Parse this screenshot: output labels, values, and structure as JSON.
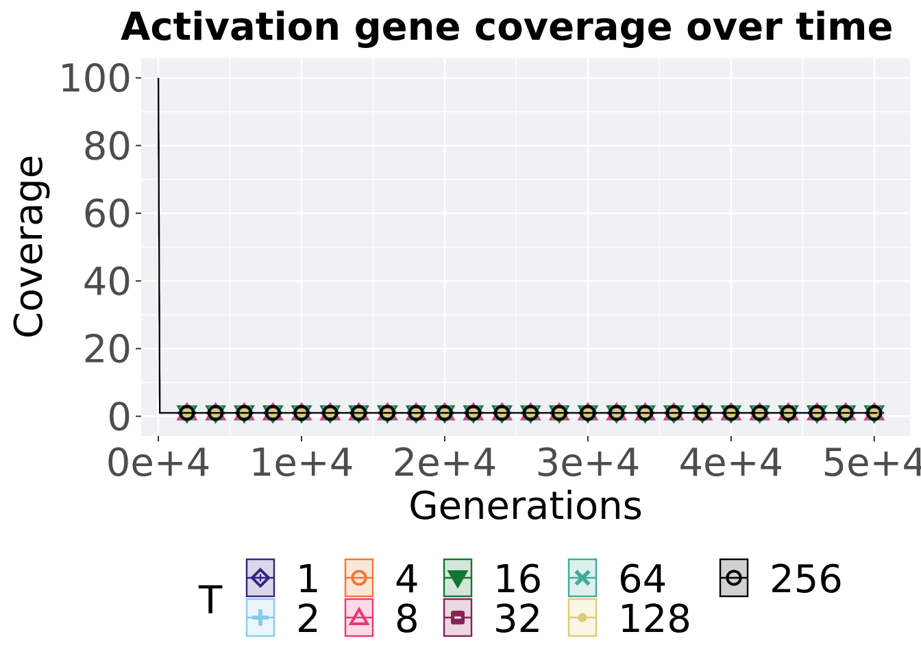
{
  "chart_data": {
    "type": "line",
    "title": "Activation gene coverage over time",
    "xlabel": "Generations",
    "ylabel": "Coverage",
    "xlim": [
      -1200,
      52500
    ],
    "ylim": [
      -5.8,
      105.8
    ],
    "x_ticks": [
      0,
      10000,
      20000,
      30000,
      40000,
      50000
    ],
    "x_tick_labels": [
      "0e+4",
      "1e+4",
      "2e+4",
      "3e+4",
      "4e+4",
      "5e+4"
    ],
    "y_ticks": [
      0,
      20,
      40,
      60,
      80,
      100
    ],
    "y_tick_labels": [
      "0",
      "20",
      "40",
      "60",
      "80",
      "100"
    ],
    "grid": true,
    "legend_title": "T",
    "legend_position": "bottom",
    "x": [
      0,
      100,
      2000,
      4000,
      6000,
      8000,
      10000,
      12000,
      14000,
      16000,
      18000,
      20000,
      22000,
      24000,
      26000,
      28000,
      30000,
      32000,
      34000,
      36000,
      38000,
      40000,
      42000,
      44000,
      46000,
      48000,
      50000
    ],
    "series": [
      {
        "name": "1",
        "color": "#332288",
        "marker": "diamond-plus",
        "values": [
          100,
          1,
          1,
          1,
          1,
          1,
          1,
          1,
          1,
          1,
          1,
          1,
          1,
          1,
          1,
          1,
          1,
          1,
          1,
          1,
          1,
          1,
          1,
          1,
          1,
          1,
          1
        ]
      },
      {
        "name": "2",
        "color": "#88CCEE",
        "marker": "plus",
        "values": [
          100,
          1,
          1,
          1,
          1,
          1,
          1,
          1,
          1,
          1,
          1,
          1,
          1,
          1,
          1,
          1,
          1,
          1,
          1,
          1,
          1,
          1,
          1,
          1,
          1,
          1,
          1
        ]
      },
      {
        "name": "4",
        "color": "#EE7733",
        "marker": "circle-minus",
        "values": [
          100,
          1,
          1,
          1,
          1,
          1,
          1,
          1,
          1,
          1,
          1,
          1,
          1,
          1,
          1,
          1,
          1,
          1,
          1,
          1,
          1,
          1,
          1,
          1,
          1,
          1,
          1
        ]
      },
      {
        "name": "8",
        "color": "#EE3377",
        "marker": "triangle-up",
        "values": [
          100,
          1,
          1,
          1,
          1,
          1,
          1,
          1,
          1,
          1,
          1,
          1,
          1,
          1,
          1,
          1,
          1,
          1,
          1,
          1,
          1,
          1,
          1,
          1,
          1,
          1,
          1
        ]
      },
      {
        "name": "16",
        "color": "#117733",
        "marker": "triangle-down",
        "values": [
          100,
          1,
          1,
          1,
          1,
          1,
          1,
          1,
          1,
          1,
          1,
          1,
          1,
          1,
          1,
          1,
          1,
          1,
          1,
          1,
          1,
          1,
          1,
          1,
          1,
          1,
          1
        ]
      },
      {
        "name": "32",
        "color": "#882255",
        "marker": "square-minus",
        "values": [
          100,
          1,
          1,
          1,
          1,
          1,
          1,
          1,
          1,
          1,
          1,
          1,
          1,
          1,
          1,
          1,
          1,
          1,
          1,
          1,
          1,
          1,
          1,
          1,
          1,
          1,
          1
        ]
      },
      {
        "name": "64",
        "color": "#44AA99",
        "marker": "cross",
        "values": [
          100,
          1,
          1,
          1,
          1,
          1,
          1,
          1,
          1,
          1,
          1,
          1,
          1,
          1,
          1,
          1,
          1,
          1,
          1,
          1,
          1,
          1,
          1,
          1,
          1,
          1,
          1
        ]
      },
      {
        "name": "128",
        "color": "#DDCC77",
        "marker": "dot",
        "values": [
          100,
          1,
          1,
          1,
          1,
          1,
          1,
          1,
          1,
          1,
          1,
          1,
          1,
          1,
          1,
          1,
          1,
          1,
          1,
          1,
          1,
          1,
          1,
          1,
          1,
          1,
          1
        ]
      },
      {
        "name": "256",
        "color": "#000000",
        "marker": "circle-minus",
        "values": [
          100,
          1,
          1,
          1,
          1,
          1,
          1,
          1,
          1,
          1,
          1,
          1,
          1,
          1,
          1,
          1,
          1,
          1,
          1,
          1,
          1,
          1,
          1,
          1,
          1,
          1,
          1
        ]
      }
    ],
    "panel_background": "#F0F1F5",
    "grid_color": "#FFFFFF"
  }
}
